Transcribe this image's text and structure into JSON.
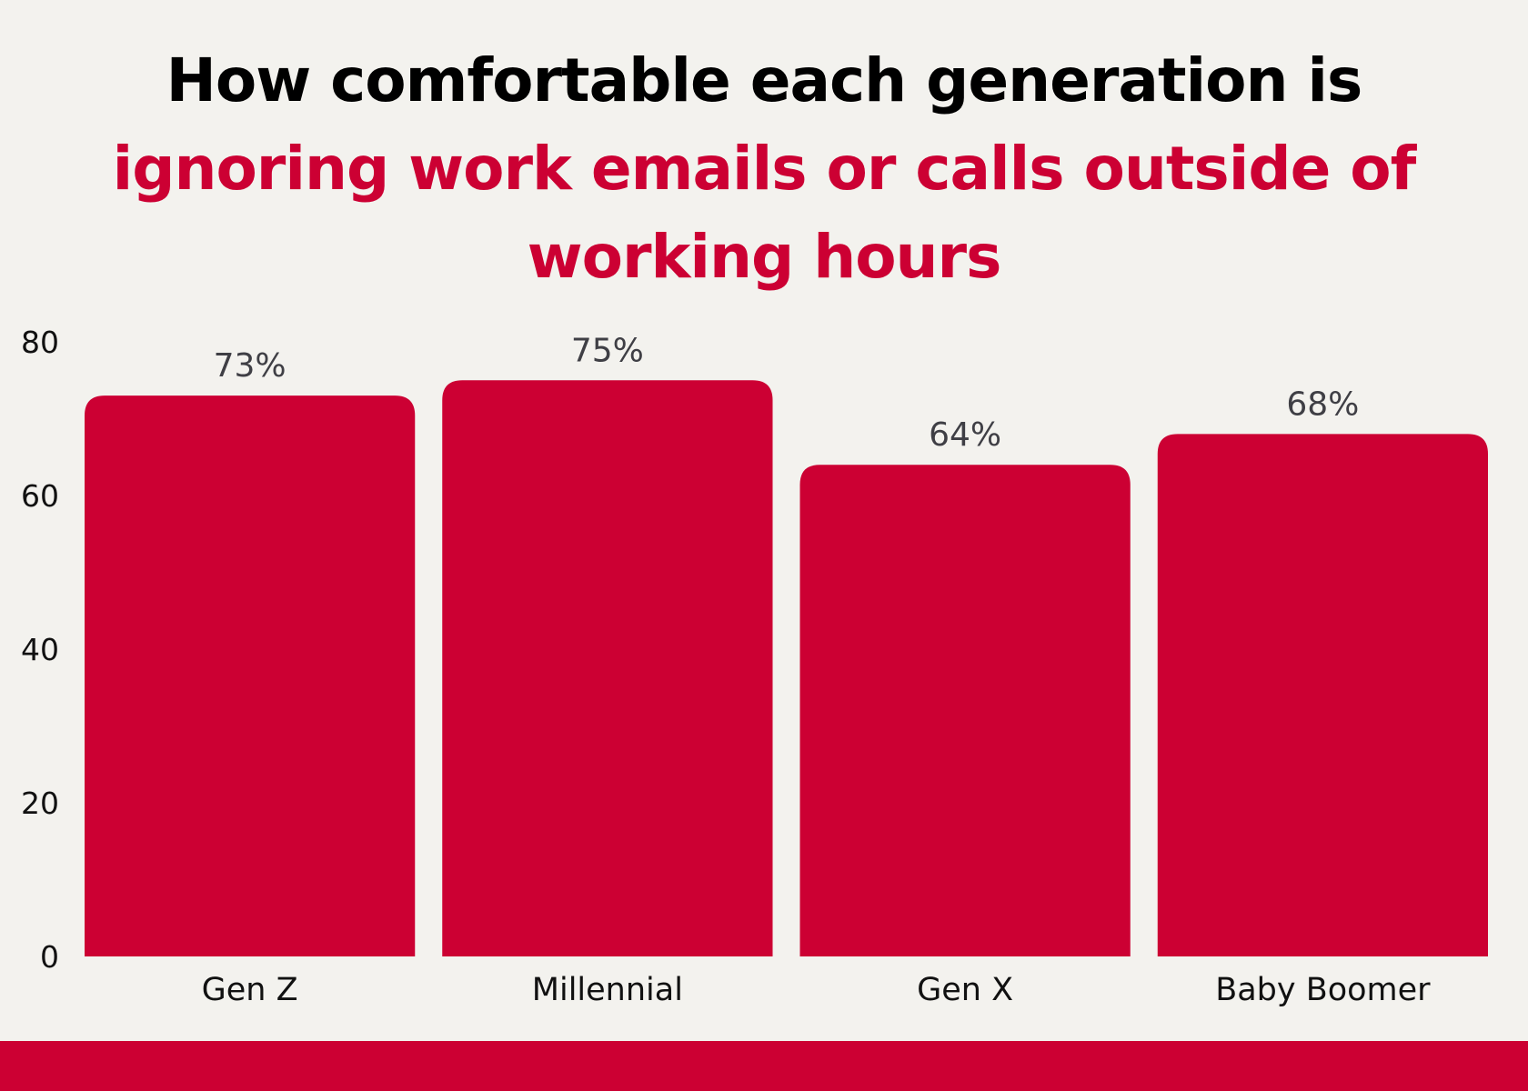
{
  "title": {
    "line1": "How comfortable each generation is",
    "line2": "ignoring work emails or calls outside of working hours"
  },
  "colors": {
    "background": "#f3f2ee",
    "accent": "#cc0033",
    "title_text": "#000000",
    "value_label": "#3f3f45",
    "axis_text": "#111111"
  },
  "chart_data": {
    "type": "bar",
    "categories": [
      "Gen Z",
      "Millennial",
      "Gen X",
      "Baby Boomer"
    ],
    "values": [
      73,
      75,
      64,
      68
    ],
    "data_labels": [
      "73%",
      "75%",
      "64%",
      "68%"
    ],
    "yticks": [
      "0",
      "20",
      "40",
      "60",
      "80"
    ],
    "ylim": [
      0,
      80
    ],
    "grid": false,
    "legend": "none",
    "xlabel": "",
    "ylabel": ""
  }
}
